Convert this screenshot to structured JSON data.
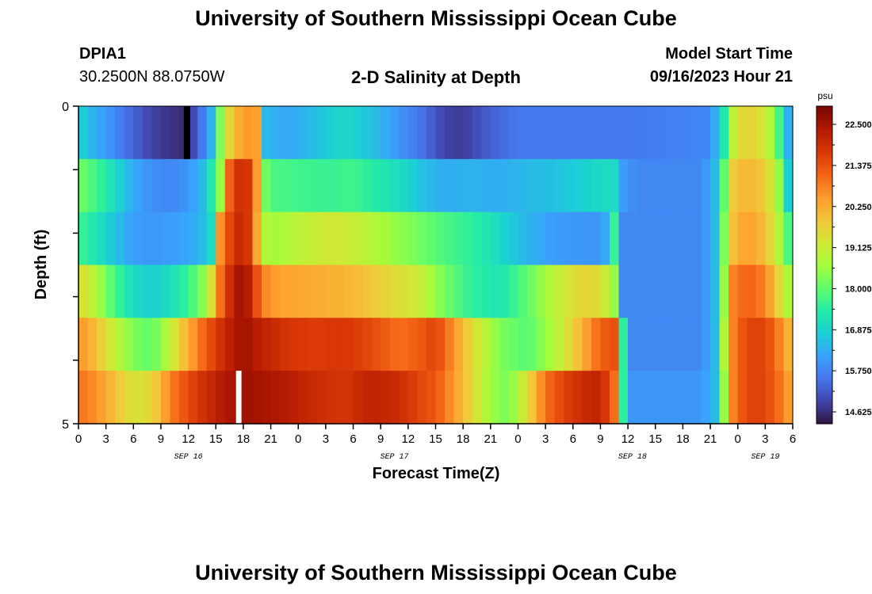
{
  "page": {
    "title_top": "University of Southern Mississippi Ocean Cube",
    "title_bottom": "University of Southern Mississippi Ocean Cube",
    "station_id": "DPIA1",
    "coordinates": "30.2500N  88.0750W",
    "plot_title": "2-D Salinity at Depth",
    "model_start_label": "Model Start Time",
    "model_start_value": "09/16/2023 Hour 21"
  },
  "chart_data": {
    "type": "heatmap",
    "title": "2-D Salinity at Depth",
    "xlabel": "Forecast Time(Z)",
    "ylabel": "Depth (ft)",
    "units": "psu",
    "x_start_hour": 0,
    "x_end_hour": 78,
    "ylim": [
      0,
      5
    ],
    "y_major_ticks": [
      0,
      5
    ],
    "x_tick_labels": [
      "0",
      "3",
      "6",
      "9",
      "12",
      "15",
      "18",
      "21",
      "0",
      "3",
      "6",
      "9",
      "12",
      "15",
      "18",
      "21",
      "0",
      "3",
      "6",
      "9",
      "12",
      "15",
      "18",
      "21",
      "0",
      "3",
      "6"
    ],
    "date_labels": [
      {
        "label": "SEP 16",
        "hour": 12
      },
      {
        "label": "SEP 17",
        "hour": 34.5
      },
      {
        "label": "SEP 18",
        "hour": 60.5
      },
      {
        "label": "SEP 19",
        "hour": 75
      }
    ],
    "depth_rows": [
      {
        "keys": [
          [
            0,
            16.9
          ],
          [
            2,
            16.3
          ],
          [
            4,
            15.8
          ],
          [
            6,
            15.3
          ],
          [
            8,
            14.9
          ],
          [
            10,
            14.7
          ],
          [
            11.5,
            14.6
          ],
          [
            13,
            15.2
          ],
          [
            14.5,
            16.4
          ],
          [
            15.5,
            18.3
          ],
          [
            16.5,
            19.6
          ],
          [
            18,
            20.6
          ],
          [
            19.5,
            20.4
          ],
          [
            20.3,
            16.5
          ],
          [
            23,
            16.2
          ],
          [
            26,
            16.6
          ],
          [
            29,
            17.0
          ],
          [
            32,
            16.6
          ],
          [
            35,
            16.0
          ],
          [
            38,
            15.4
          ],
          [
            40,
            14.9
          ],
          [
            42,
            14.8
          ],
          [
            45,
            15.3
          ],
          [
            48,
            15.6
          ],
          [
            55,
            15.6
          ],
          [
            60,
            15.6
          ],
          [
            65,
            15.7
          ],
          [
            69,
            15.8
          ],
          [
            70.5,
            17.3
          ],
          [
            71,
            18.5
          ],
          [
            72,
            19.5
          ],
          [
            74,
            19.7
          ],
          [
            76,
            18.5
          ],
          [
            77.3,
            16.5
          ],
          [
            78,
            16.0
          ]
        ]
      },
      {
        "keys": [
          [
            0,
            18.2
          ],
          [
            2,
            17.7
          ],
          [
            4,
            17.0
          ],
          [
            6,
            16.3
          ],
          [
            8,
            15.9
          ],
          [
            10,
            15.8
          ],
          [
            12,
            16.0
          ],
          [
            13.5,
            16.5
          ],
          [
            14.5,
            17.3
          ],
          [
            15,
            17.8
          ],
          [
            15.5,
            18.5
          ],
          [
            16,
            20.6
          ],
          [
            17,
            21.8
          ],
          [
            18,
            22.0
          ],
          [
            19,
            21.6
          ],
          [
            19.5,
            20.5
          ],
          [
            20,
            18.5
          ],
          [
            21,
            17.8
          ],
          [
            24,
            17.7
          ],
          [
            27,
            17.6
          ],
          [
            30,
            17.7
          ],
          [
            33,
            17.3
          ],
          [
            36,
            16.9
          ],
          [
            38,
            16.5
          ],
          [
            40,
            16.3
          ],
          [
            43,
            16.4
          ],
          [
            46,
            16.3
          ],
          [
            49,
            16.5
          ],
          [
            52,
            16.6
          ],
          [
            55,
            16.8
          ],
          [
            57,
            17.0
          ],
          [
            58.5,
            17.0
          ],
          [
            59,
            16.2
          ],
          [
            61,
            15.8
          ],
          [
            68,
            15.8
          ],
          [
            69.5,
            16.5
          ],
          [
            70.5,
            18.0
          ],
          [
            71.5,
            19.8
          ],
          [
            73,
            20.2
          ],
          [
            75,
            19.8
          ],
          [
            76.5,
            18.5
          ],
          [
            77.5,
            16.8
          ],
          [
            78,
            16.3
          ]
        ]
      },
      {
        "keys": [
          [
            0,
            17.7
          ],
          [
            2,
            17.2
          ],
          [
            4,
            16.6
          ],
          [
            6,
            16.1
          ],
          [
            8,
            16.0
          ],
          [
            10,
            16.1
          ],
          [
            12,
            16.2
          ],
          [
            13.5,
            16.5
          ],
          [
            14.5,
            17.0
          ],
          [
            15,
            17.8
          ],
          [
            15.5,
            20.6
          ],
          [
            17,
            22.0
          ],
          [
            18,
            22.0
          ],
          [
            19,
            21.6
          ],
          [
            20,
            19.0
          ],
          [
            21,
            18.6
          ],
          [
            24,
            19.0
          ],
          [
            28,
            19.3
          ],
          [
            31,
            19.0
          ],
          [
            34,
            18.6
          ],
          [
            37,
            18.2
          ],
          [
            40,
            17.8
          ],
          [
            43,
            17.5
          ],
          [
            46,
            17.0
          ],
          [
            49,
            16.4
          ],
          [
            52,
            16.1
          ],
          [
            55,
            16.0
          ],
          [
            57,
            16.0
          ],
          [
            58,
            16.5
          ],
          [
            58.5,
            17.6
          ],
          [
            59.5,
            15.8
          ],
          [
            68,
            15.8
          ],
          [
            69.5,
            16.5
          ],
          [
            70.5,
            18.3
          ],
          [
            71.5,
            20.0
          ],
          [
            73,
            20.5
          ],
          [
            75,
            20.0
          ],
          [
            76.5,
            18.8
          ],
          [
            77.5,
            17.8
          ],
          [
            78,
            17.6
          ]
        ]
      },
      {
        "keys": [
          [
            0,
            19.6
          ],
          [
            2,
            18.8
          ],
          [
            4,
            17.7
          ],
          [
            6,
            17.0
          ],
          [
            8,
            16.8
          ],
          [
            10,
            17.1
          ],
          [
            12,
            17.6
          ],
          [
            14,
            18.6
          ],
          [
            15.5,
            21.0
          ],
          [
            17,
            22.4
          ],
          [
            18,
            22.6
          ],
          [
            19,
            22.0
          ],
          [
            20,
            20.8
          ],
          [
            22,
            20.4
          ],
          [
            25,
            20.3
          ],
          [
            28,
            20.2
          ],
          [
            31,
            20.0
          ],
          [
            34,
            19.6
          ],
          [
            37,
            19.2
          ],
          [
            40,
            18.2
          ],
          [
            43,
            17.5
          ],
          [
            46,
            17.2
          ],
          [
            49,
            18.0
          ],
          [
            52,
            19.0
          ],
          [
            55,
            19.6
          ],
          [
            57,
            19.5
          ],
          [
            58.5,
            18.5
          ],
          [
            59.5,
            15.8
          ],
          [
            68,
            15.8
          ],
          [
            69.5,
            16.5
          ],
          [
            70.5,
            18.5
          ],
          [
            71.5,
            20.8
          ],
          [
            73,
            21.2
          ],
          [
            75,
            20.8
          ],
          [
            76.5,
            19.6
          ],
          [
            77.5,
            18.8
          ],
          [
            78,
            18.5
          ]
        ]
      },
      {
        "keys": [
          [
            0,
            20.6
          ],
          [
            2,
            20.0
          ],
          [
            4,
            19.0
          ],
          [
            6,
            18.3
          ],
          [
            8,
            18.0
          ],
          [
            10,
            19.0
          ],
          [
            12,
            20.3
          ],
          [
            14,
            21.3
          ],
          [
            16,
            22.1
          ],
          [
            18,
            22.6
          ],
          [
            20,
            22.2
          ],
          [
            23,
            21.8
          ],
          [
            26,
            21.7
          ],
          [
            29,
            21.8
          ],
          [
            32,
            21.5
          ],
          [
            35,
            21.0
          ],
          [
            37,
            21.2
          ],
          [
            39,
            21.6
          ],
          [
            41,
            20.6
          ],
          [
            43,
            19.5
          ],
          [
            46,
            18.3
          ],
          [
            49,
            17.9
          ],
          [
            52,
            18.8
          ],
          [
            55,
            20.2
          ],
          [
            57,
            21.2
          ],
          [
            58.5,
            21.4
          ],
          [
            59.5,
            17.5
          ],
          [
            60,
            15.8
          ],
          [
            68,
            15.8
          ],
          [
            69.5,
            16.5
          ],
          [
            70.5,
            18.8
          ],
          [
            71.5,
            20.8
          ],
          [
            73,
            21.6
          ],
          [
            75,
            21.6
          ],
          [
            76.5,
            20.8
          ],
          [
            77.5,
            20.2
          ],
          [
            78,
            20.0
          ]
        ]
      },
      {
        "keys": [
          [
            0,
            21.0
          ],
          [
            2,
            20.6
          ],
          [
            4,
            20.0
          ],
          [
            6,
            19.3
          ],
          [
            8,
            19.6
          ],
          [
            10,
            20.8
          ],
          [
            12,
            21.5
          ],
          [
            14,
            22.0
          ],
          [
            16,
            22.4
          ],
          [
            18,
            22.6
          ],
          [
            20,
            22.5
          ],
          [
            23,
            22.3
          ],
          [
            26,
            22.0
          ],
          [
            29,
            21.8
          ],
          [
            32,
            22.2
          ],
          [
            35,
            22.0
          ],
          [
            37,
            21.6
          ],
          [
            39,
            21.3
          ],
          [
            41,
            20.5
          ],
          [
            43,
            19.6
          ],
          [
            45,
            18.6
          ],
          [
            47,
            18.2
          ],
          [
            49,
            19.5
          ],
          [
            51,
            21.0
          ],
          [
            53,
            21.6
          ],
          [
            55,
            22.0
          ],
          [
            57,
            22.2
          ],
          [
            58.5,
            21.0
          ],
          [
            59.5,
            17.5
          ],
          [
            60,
            16.0
          ],
          [
            68,
            16.0
          ],
          [
            69.5,
            16.5
          ],
          [
            70.5,
            18.5
          ],
          [
            71.5,
            20.8
          ],
          [
            73,
            21.6
          ],
          [
            75,
            21.6
          ],
          [
            76.5,
            21.0
          ],
          [
            77.5,
            20.5
          ],
          [
            78,
            20.3
          ]
        ]
      }
    ],
    "missing_cells": [
      {
        "row": 0,
        "start_hour": 11.5,
        "end_hour": 12.2,
        "color": "#000000"
      },
      {
        "row": 5,
        "start_hour": 17.2,
        "end_hour": 17.8,
        "color": "#ffffff"
      }
    ],
    "colorbar": {
      "label": "psu",
      "min": 14.3,
      "max": 23.0,
      "tick_values": [
        14.625,
        15.75,
        16.875,
        18.0,
        19.125,
        20.25,
        21.375,
        22.5
      ],
      "tick_labels": [
        "14.625",
        "15.750",
        "16.875",
        "18.000",
        "19.125",
        "20.250",
        "21.375",
        "22.500"
      ],
      "colors": [
        "#30123b",
        "#4145ab",
        "#4675ed",
        "#39a2fc",
        "#1bcfd4",
        "#24eca6",
        "#61fc6c",
        "#a4fc3b",
        "#d1e834",
        "#f3c63a",
        "#fe9b2d",
        "#f36315",
        "#d93806",
        "#b11901",
        "#7a0402"
      ]
    }
  }
}
